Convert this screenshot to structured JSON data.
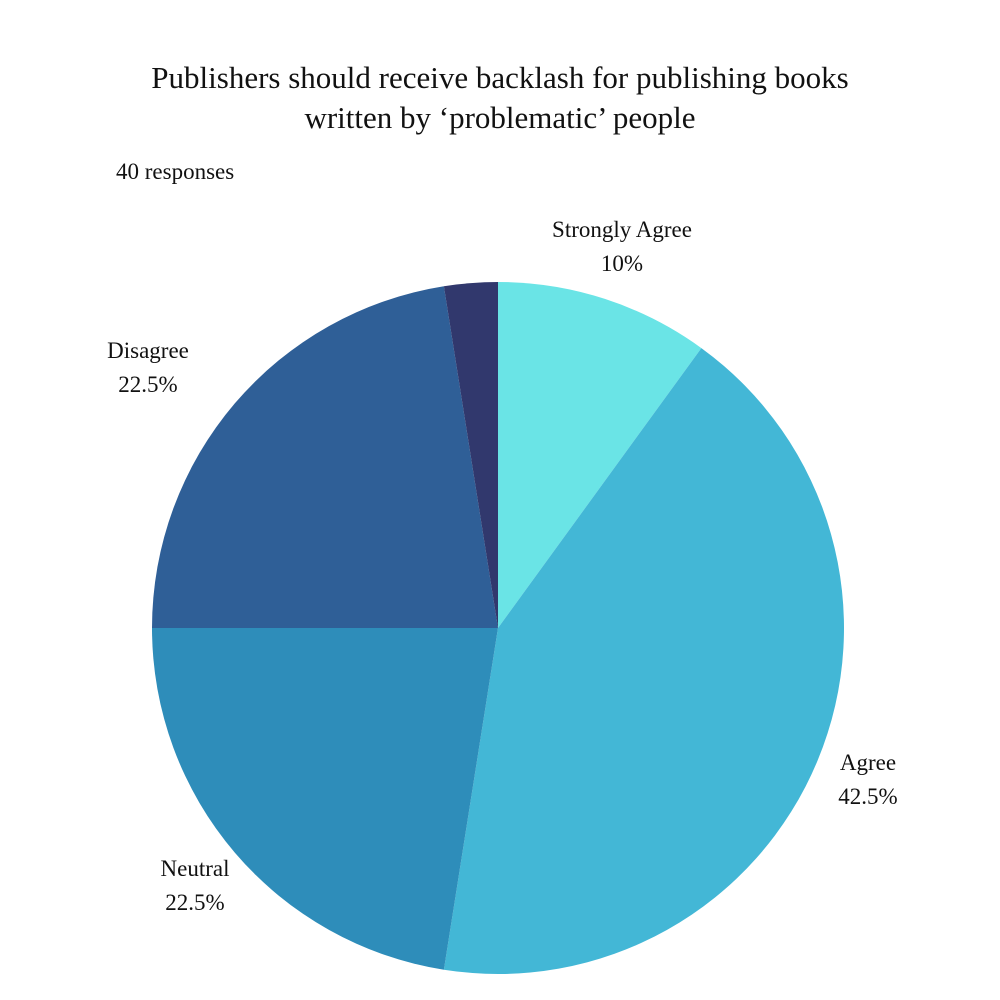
{
  "title_line1": "Publishers should receive backlash for publishing books",
  "title_line2": "written by ‘problematic’ people",
  "responses_label": "40 responses",
  "chart_data": {
    "type": "pie",
    "title": "Publishers should receive backlash for publishing books written by ‘problematic’ people",
    "start_angle_deg": 0,
    "direction": "clockwise",
    "slices": [
      {
        "label": "Strongly Agree",
        "value": 10,
        "value_label": "10%",
        "color": "#6ae4e6"
      },
      {
        "label": "Agree",
        "value": 42.5,
        "value_label": "42.5%",
        "color": "#43b7d6"
      },
      {
        "label": "Neutral",
        "value": 22.5,
        "value_label": "22.5%",
        "color": "#2e8dba"
      },
      {
        "label": "Disagree",
        "value": 22.5,
        "value_label": "22.5%",
        "color": "#2f5f97"
      },
      {
        "label": "",
        "value": 2.5,
        "value_label": "",
        "color": "#31386d"
      }
    ]
  }
}
